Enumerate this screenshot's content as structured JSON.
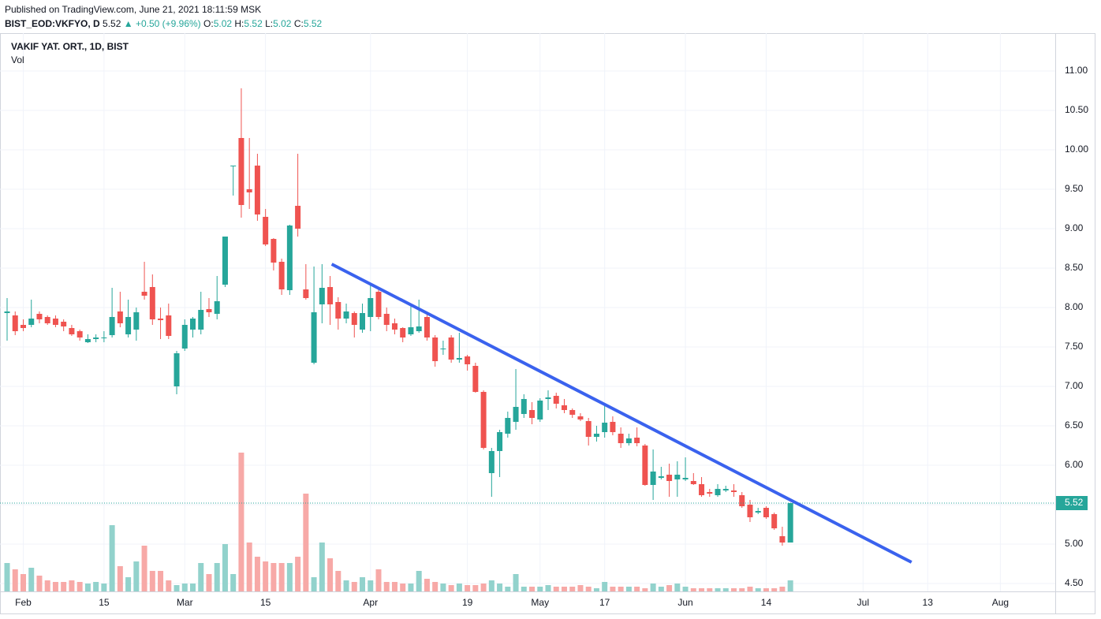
{
  "header": {
    "published": "Published on TradingView.com, June 21, 2021 18:11:59 MSK",
    "symbol": "BIST_EOD:VKFYO, D",
    "price": "5.52",
    "change": "▲ +0.50 (+9.96%)",
    "fields": [
      {
        "key": "O:",
        "value": "5.02"
      },
      {
        "key": "H:",
        "value": "5.52"
      },
      {
        "key": "L:",
        "value": "5.02"
      },
      {
        "key": "C:",
        "value": "5.52"
      }
    ]
  },
  "chart_data": {
    "type": "candlestick",
    "title": "VAKIF YAT. ORT., 1D, BIST",
    "volume_label": "Vol",
    "open": [
      7.93,
      7.9,
      7.78,
      7.78,
      7.92,
      7.88,
      7.86,
      7.82,
      7.74,
      7.7,
      7.56,
      7.6,
      7.62,
      7.65,
      7.95,
      7.66,
      7.72,
      8.2,
      8.26,
      7.86,
      7.9,
      7.0,
      7.48,
      7.72,
      7.72,
      7.98,
      7.92,
      8.29,
      9.79,
      10.15,
      9.5,
      9.8,
      9.15,
      8.87,
      8.58,
      8.22,
      9.29,
      8.23,
      7.3,
      8.04,
      8.26,
      8.07,
      7.86,
      7.93,
      7.72,
      7.88,
      8.2,
      7.92,
      7.8,
      7.74,
      7.66,
      7.7,
      7.88,
      7.62,
      7.48,
      7.62,
      7.34,
      7.38,
      7.26,
      6.93,
      5.9,
      6.18,
      6.4,
      6.55,
      6.65,
      6.7,
      6.58,
      6.84,
      6.88,
      6.76,
      6.7,
      6.62,
      6.56,
      6.36,
      6.42,
      6.55,
      6.4,
      6.28,
      6.35,
      6.25,
      5.75,
      5.84,
      5.88,
      5.82,
      5.82,
      5.8,
      5.76,
      5.66,
      5.62,
      5.68,
      5.68,
      5.62,
      5.5,
      5.4,
      5.46,
      5.38,
      5.1,
      5.02
    ],
    "high": [
      8.12,
      7.95,
      7.85,
      8.1,
      7.95,
      7.9,
      7.9,
      7.85,
      7.78,
      7.72,
      7.66,
      7.66,
      7.7,
      8.25,
      8.2,
      8.1,
      8.0,
      8.58,
      8.42,
      8.0,
      8.05,
      7.45,
      7.85,
      7.88,
      8.2,
      8.12,
      8.4,
      8.9,
      9.8,
      10.78,
      10.15,
      9.95,
      9.25,
      8.88,
      8.62,
      9.05,
      9.95,
      8.55,
      8.52,
      8.55,
      8.4,
      8.13,
      8.05,
      7.95,
      8.05,
      8.3,
      8.25,
      8.0,
      7.86,
      7.75,
      8.05,
      8.1,
      7.95,
      7.65,
      7.58,
      7.65,
      7.68,
      7.4,
      7.3,
      6.95,
      6.22,
      6.45,
      6.68,
      7.22,
      6.9,
      6.8,
      6.85,
      6.95,
      6.92,
      6.84,
      6.72,
      6.66,
      6.6,
      6.5,
      6.76,
      6.62,
      6.48,
      6.4,
      6.48,
      6.27,
      6.2,
      5.98,
      6.02,
      6.05,
      6.1,
      5.9,
      5.85,
      5.7,
      5.76,
      5.74,
      5.76,
      5.66,
      5.56,
      5.46,
      5.48,
      5.4,
      5.22,
      5.52
    ],
    "low": [
      7.58,
      7.65,
      7.7,
      7.75,
      7.8,
      7.78,
      7.75,
      7.7,
      7.64,
      7.58,
      7.55,
      7.56,
      7.56,
      7.62,
      7.75,
      7.62,
      7.58,
      8.1,
      7.78,
      7.6,
      7.6,
      6.9,
      7.45,
      7.62,
      7.66,
      7.88,
      7.85,
      8.26,
      9.42,
      9.14,
      9.25,
      9.1,
      8.78,
      8.47,
      8.16,
      8.16,
      8.9,
      8.1,
      7.28,
      7.8,
      7.78,
      7.72,
      7.8,
      7.62,
      7.68,
      7.7,
      7.85,
      7.7,
      7.66,
      7.56,
      7.64,
      7.68,
      7.58,
      7.25,
      7.4,
      7.3,
      7.3,
      7.2,
      6.92,
      6.2,
      5.6,
      5.85,
      6.35,
      6.45,
      6.6,
      6.52,
      6.55,
      6.7,
      6.72,
      6.66,
      6.6,
      6.56,
      6.25,
      6.3,
      6.35,
      6.38,
      6.22,
      6.25,
      6.24,
      5.74,
      5.56,
      5.82,
      5.6,
      5.6,
      5.8,
      5.75,
      5.6,
      5.6,
      5.6,
      5.66,
      5.6,
      5.46,
      5.28,
      5.38,
      5.32,
      5.18,
      4.98,
      5.02
    ],
    "close": [
      7.95,
      7.7,
      7.74,
      7.86,
      7.85,
      7.8,
      7.78,
      7.76,
      7.66,
      7.62,
      7.6,
      7.62,
      7.62,
      7.88,
      7.8,
      7.88,
      7.94,
      8.15,
      7.85,
      7.84,
      7.64,
      7.42,
      7.78,
      7.86,
      7.97,
      7.94,
      8.08,
      8.9,
      9.8,
      9.3,
      9.46,
      9.18,
      8.8,
      8.57,
      8.23,
      9.04,
      9.0,
      8.12,
      7.94,
      8.25,
      8.04,
      7.86,
      7.95,
      7.78,
      7.93,
      8.12,
      7.88,
      7.78,
      7.72,
      7.62,
      7.75,
      7.76,
      7.62,
      7.32,
      7.48,
      7.34,
      7.36,
      7.28,
      6.93,
      6.22,
      6.18,
      6.42,
      6.6,
      6.74,
      6.84,
      6.6,
      6.82,
      6.86,
      6.78,
      6.7,
      6.64,
      6.58,
      6.36,
      6.4,
      6.54,
      6.42,
      6.28,
      6.34,
      6.28,
      5.75,
      5.92,
      5.86,
      5.8,
      5.88,
      5.84,
      5.76,
      5.62,
      5.64,
      5.7,
      5.7,
      5.66,
      5.48,
      5.34,
      5.42,
      5.34,
      5.2,
      5.02,
      5.52
    ],
    "volume": [
      36,
      28,
      22,
      30,
      20,
      14,
      12,
      12,
      14,
      12,
      10,
      12,
      10,
      84,
      32,
      18,
      38,
      58,
      26,
      26,
      14,
      8,
      10,
      10,
      36,
      22,
      36,
      60,
      22,
      176,
      62,
      44,
      38,
      36,
      36,
      36,
      44,
      124,
      18,
      62,
      42,
      26,
      14,
      12,
      18,
      14,
      28,
      12,
      12,
      10,
      10,
      26,
      16,
      12,
      10,
      8,
      10,
      8,
      8,
      10,
      14,
      10,
      6,
      22,
      6,
      6,
      6,
      8,
      6,
      6,
      6,
      8,
      6,
      4,
      12,
      6,
      6,
      6,
      6,
      4,
      10,
      6,
      8,
      10,
      6,
      4,
      4,
      4,
      4,
      4,
      4,
      4,
      6,
      4,
      4,
      4,
      6,
      14
    ],
    "up_color": "#26a69a",
    "down_color": "#ef5350",
    "up_volume_color": "#92d2cc",
    "down_volume_color": "#f7a9a7",
    "xlim": [
      -0.88,
      129.8
    ],
    "xticks": [
      {
        "value": 2,
        "label": "Feb"
      },
      {
        "value": 12,
        "label": "15"
      },
      {
        "value": 22,
        "label": "Mar"
      },
      {
        "value": 32,
        "label": "15"
      },
      {
        "value": 45,
        "label": "Apr"
      },
      {
        "value": 57,
        "label": "19"
      },
      {
        "value": 66,
        "label": "May"
      },
      {
        "value": 74,
        "label": "17"
      },
      {
        "value": 84,
        "label": "Jun"
      },
      {
        "value": 94,
        "label": "14"
      },
      {
        "value": 106,
        "label": "Jul"
      },
      {
        "value": 114,
        "label": "13"
      },
      {
        "value": 123,
        "label": "Aug"
      }
    ],
    "ylim": [
      4.4,
      11.48
    ],
    "yticks": [
      {
        "value": 4.5,
        "label": "4.50"
      },
      {
        "value": 5,
        "label": "5.00"
      },
      {
        "value": 5.5,
        "label": "5.50"
      },
      {
        "value": 6,
        "label": "6.00"
      },
      {
        "value": 6.5,
        "label": "6.50"
      },
      {
        "value": 7,
        "label": "7.00"
      },
      {
        "value": 7.5,
        "label": "7.50"
      },
      {
        "value": 8,
        "label": "8.00"
      },
      {
        "value": 8.5,
        "label": "8.50"
      },
      {
        "value": 9,
        "label": "9.00"
      },
      {
        "value": 9.5,
        "label": "9.50"
      },
      {
        "value": 10,
        "label": "10.00"
      },
      {
        "value": 10.5,
        "label": "10.50"
      },
      {
        "value": 11,
        "label": "11.00"
      }
    ],
    "volume_lim": [
      0,
      190
    ],
    "last_price": 5.52,
    "trendline": {
      "x": [
        40.2,
        112.0
      ],
      "y": [
        8.55,
        4.77
      ],
      "color": "#3a62ee"
    },
    "grid": true
  }
}
